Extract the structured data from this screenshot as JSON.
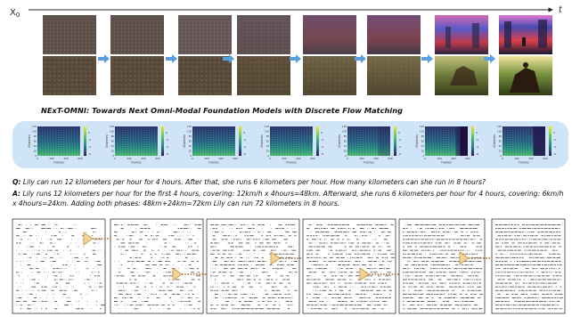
{
  "figure": {
    "x0_label": "X",
    "x0_subscript": "0",
    "t_label": "t",
    "caption_title": "NExT-OMNI: Towards Next Omni-Modal Foundation Models with Discrete Flow Matching"
  },
  "spectrograms": {
    "y_label": "Channels",
    "x_label": "Frames",
    "x_ticks": [
      "0",
      "200",
      "400",
      "600"
    ],
    "y_ticks": [
      "0",
      "20",
      "40",
      "60",
      "80",
      "100",
      "120"
    ],
    "colorbar_ticks": [
      "0",
      "-2",
      "-4",
      "-6"
    ]
  },
  "qa": {
    "q_prefix": "Q:",
    "question": "Lily can run 12 kilometers per hour for 4 hours. After that, she runs 6 kilometers per hour. How many kilometers can she run in 8 hours?",
    "a_prefix": "A:",
    "answer": "Lily runs 12 kilometers per hour for the first 4 hours, covering: 12km/h x 4hours=48km. Afterward, she runs 6 kilometers per hour for 4 hours, covering: 6km/h x 4hours=24km. Adding both phases: 48km+24km=72km Lily can run 72 kilometers in 8 hours."
  },
  "colors": {
    "arrow_blue": "#5aa0de",
    "panel_blue": "#cfe4f6",
    "triangle_fill": "#f2d49a",
    "triangle_stroke": "#c9973a",
    "dash_brown": "#a86a2c"
  }
}
